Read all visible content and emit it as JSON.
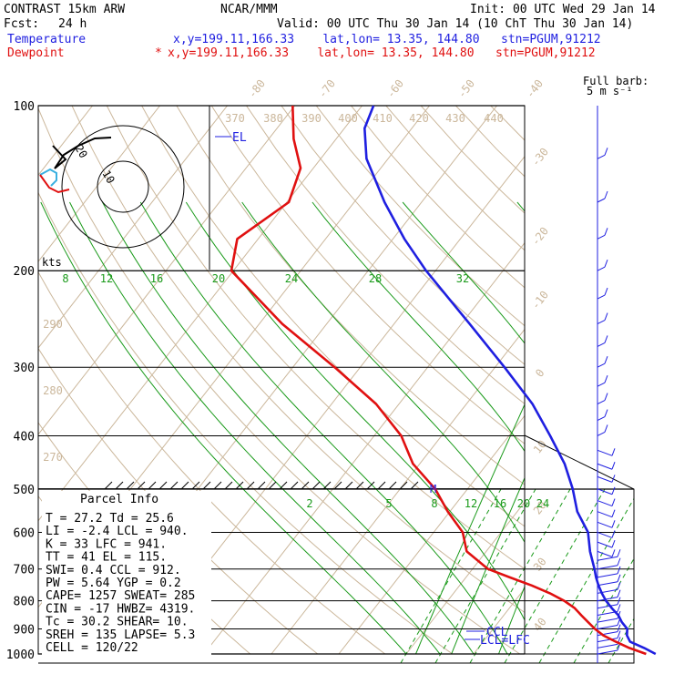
{
  "header": {
    "model": "CONTRAST 15km ARW",
    "center": "NCAR/MMM",
    "init": "Init: 00 UTC Wed 29 Jan 14",
    "fcst_label": "Fcst:",
    "fcst_value": "24 h",
    "valid": "Valid: 00 UTC Thu 30 Jan 14 (10 ChT Thu 30 Jan 14)",
    "temp_label": "Temperature",
    "temp_info": "x,y=199.11,166.33    lat,lon= 13.35, 144.80   stn=PGUM,91212",
    "dew_label": "Dewpoint",
    "dew_marker": "*",
    "dew_info": "x,y=199.11,166.33    lat,lon= 13.35, 144.80   stn=PGUM,91212",
    "barb_title_1": "Full barb:",
    "barb_title_2": "5 m s⁻¹"
  },
  "colors": {
    "temperature": "#1f1fe0",
    "dewpoint": "#e01010",
    "isotherm": "#cbb79b",
    "mixing_ratio": "#1a9a1a",
    "grid": "#000000"
  },
  "chart_data": {
    "type": "line",
    "title": "",
    "y_axis_scale": "log-pressure",
    "ylim": [
      1000,
      100
    ],
    "pressure_levels": [
      100,
      200,
      300,
      400,
      500,
      600,
      700,
      800,
      900,
      1000
    ],
    "isotherm_labels": [
      "-80",
      "-70",
      "-60",
      "-50",
      "-40",
      "-30",
      "-20",
      "-10",
      "0",
      "10",
      "20",
      "30",
      "40"
    ],
    "theta_labels": [
      "370",
      "380",
      "390",
      "400",
      "410",
      "420",
      "430",
      "440",
      "290",
      "280",
      "270"
    ],
    "mixing_ratio_labels_upper": [
      "8",
      "12",
      "16",
      "20",
      "24",
      "28",
      "32"
    ],
    "mixing_ratio_labels_lower": [
      "2",
      "5",
      "8",
      "12",
      "16",
      "20",
      "24"
    ],
    "series": [
      {
        "name": "Temperature",
        "color": "#1f1fe0",
        "points": [
          [
            1000,
            27.0
          ],
          [
            975,
            24.6
          ],
          [
            950,
            21.8
          ],
          [
            925,
            20.6
          ],
          [
            900,
            19.9
          ],
          [
            875,
            18.3
          ],
          [
            850,
            17.0
          ],
          [
            825,
            15.2
          ],
          [
            800,
            13.5
          ],
          [
            775,
            12.0
          ],
          [
            750,
            10.6
          ],
          [
            725,
            9.3
          ],
          [
            700,
            8.1
          ],
          [
            650,
            5.4
          ],
          [
            600,
            2.9
          ],
          [
            550,
            -1.1
          ],
          [
            500,
            -4.4
          ],
          [
            450,
            -8.5
          ],
          [
            400,
            -13.9
          ],
          [
            350,
            -20.2
          ],
          [
            300,
            -28.6
          ],
          [
            250,
            -38.8
          ],
          [
            200,
            -51.4
          ],
          [
            175,
            -58.3
          ],
          [
            150,
            -65.5
          ],
          [
            125,
            -73.2
          ],
          [
            110,
            -77.0
          ],
          [
            100,
            -78.3
          ]
        ]
      },
      {
        "name": "Dewpoint",
        "color": "#e01010",
        "points": [
          [
            1000,
            25.6
          ],
          [
            975,
            22.4
          ],
          [
            950,
            19.7
          ],
          [
            925,
            17.1
          ],
          [
            900,
            15.1
          ],
          [
            875,
            13.3
          ],
          [
            850,
            11.5
          ],
          [
            825,
            9.7
          ],
          [
            800,
            7.3
          ],
          [
            775,
            4.3
          ],
          [
            750,
            0.7
          ],
          [
            725,
            -3.5
          ],
          [
            700,
            -7.7
          ],
          [
            650,
            -12.9
          ],
          [
            600,
            -15.7
          ],
          [
            550,
            -20.3
          ],
          [
            500,
            -24.8
          ],
          [
            450,
            -31.0
          ],
          [
            400,
            -36.0
          ],
          [
            350,
            -43.4
          ],
          [
            300,
            -53.8
          ],
          [
            250,
            -66.6
          ],
          [
            200,
            -80.3
          ],
          [
            175,
            -83.1
          ],
          [
            150,
            -79.7
          ],
          [
            130,
            -81.9
          ],
          [
            115,
            -86.3
          ],
          [
            100,
            -90.3
          ]
        ]
      }
    ],
    "annotations": {
      "el": "EL",
      "ccl": "CCL",
      "lcl_lfc": "LCL=LFC",
      "m": "M",
      "hodo_rings": [
        "10",
        "20"
      ],
      "hodo_units": "kts"
    }
  },
  "parcel": {
    "title": "Parcel Info",
    "rows": [
      "T  =   27.2  Td =  25.6",
      "LI =   -2.4  LCL =  940.",
      "K  =     33  LFC =  941.",
      "TT =     41  EL  =  115.",
      "SWI=    0.4  CCL =  912.",
      "PW =   5.64  YGP =   0.2",
      "CAPE=  1257  SWEAT=  285",
      "CIN =   -17  HWBZ= 4319.",
      "Tc =   30.2  SHEAR=  10.",
      "SREH =  135  LAPSE=  5.3",
      "CELL = 120/22"
    ]
  }
}
